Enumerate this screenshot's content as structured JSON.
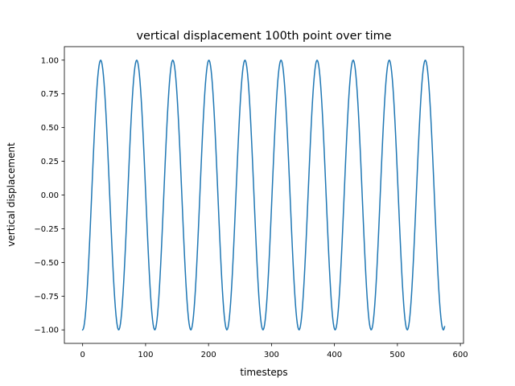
{
  "chart_data": {
    "type": "line",
    "title": "vertical displacement 100th point over time",
    "xlabel": "timesteps",
    "ylabel": "vertical displacement",
    "xlim": [
      -29,
      605
    ],
    "ylim": [
      -1.1,
      1.1
    ],
    "x_ticks": [
      0,
      100,
      200,
      300,
      400,
      500,
      600
    ],
    "y_ticks": [
      -1.0,
      -0.75,
      -0.5,
      -0.25,
      0.0,
      0.25,
      0.5,
      0.75,
      1.0
    ],
    "x_tick_labels": [
      "0",
      "100",
      "200",
      "300",
      "400",
      "500",
      "600"
    ],
    "y_tick_labels": [
      "−1.00",
      "−0.75",
      "−0.50",
      "−0.25",
      "0.00",
      "0.25",
      "0.50",
      "0.75",
      "1.00"
    ],
    "grid": false,
    "legend": null,
    "series": [
      {
        "color": "#1f77b4",
        "x_start": 0,
        "x_end": 575,
        "x_step": 1,
        "function": "-cos(2*pi*x/57.3)",
        "approx_points": [
          [
            0,
            -1.0
          ],
          [
            14,
            0.0
          ],
          [
            28.6,
            1.0
          ],
          [
            43,
            0.0
          ],
          [
            57.3,
            -1.0
          ],
          [
            86,
            1.0
          ],
          [
            114.6,
            -1.0
          ],
          [
            143,
            1.0
          ],
          [
            172,
            -1.0
          ],
          [
            200.5,
            1.0
          ],
          [
            229,
            -1.0
          ],
          [
            258,
            1.0
          ],
          [
            286.5,
            -1.0
          ],
          [
            315,
            1.0
          ],
          [
            344,
            -1.0
          ],
          [
            372.5,
            1.0
          ],
          [
            401,
            -1.0
          ],
          [
            430,
            1.0
          ],
          [
            458.5,
            -1.0
          ],
          [
            487,
            1.0
          ],
          [
            516,
            -1.0
          ],
          [
            544.5,
            1.0
          ],
          [
            573,
            -1.0
          ],
          [
            575,
            -0.96
          ]
        ]
      }
    ]
  }
}
